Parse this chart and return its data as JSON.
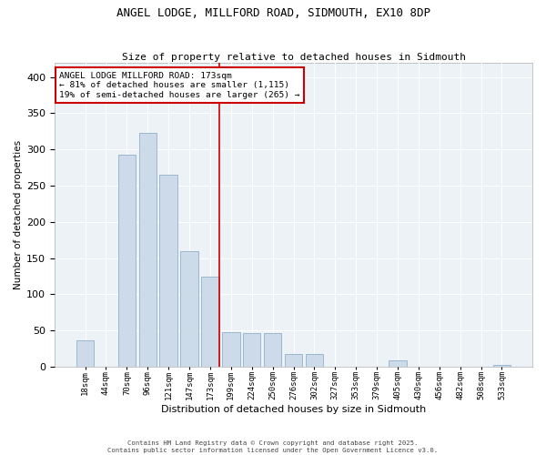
{
  "title_line1": "ANGEL LODGE, MILLFORD ROAD, SIDMOUTH, EX10 8DP",
  "title_line2": "Size of property relative to detached houses in Sidmouth",
  "xlabel": "Distribution of detached houses by size in Sidmouth",
  "ylabel": "Number of detached properties",
  "bar_color": "#ccdaea",
  "bar_edge_color": "#9bb8d0",
  "annotation_line_color": "#cc0000",
  "plot_bg_color": "#edf2f7",
  "bins": [
    "18sqm",
    "44sqm",
    "70sqm",
    "96sqm",
    "121sqm",
    "147sqm",
    "173sqm",
    "199sqm",
    "224sqm",
    "250sqm",
    "276sqm",
    "302sqm",
    "327sqm",
    "353sqm",
    "379sqm",
    "405sqm",
    "430sqm",
    "456sqm",
    "482sqm",
    "508sqm",
    "533sqm"
  ],
  "values": [
    37,
    0,
    293,
    323,
    265,
    160,
    125,
    48,
    47,
    47,
    18,
    18,
    0,
    0,
    0,
    9,
    0,
    0,
    0,
    0,
    3
  ],
  "property_bin_index": 6,
  "annotation_text_line1": "ANGEL LODGE MILLFORD ROAD: 173sqm",
  "annotation_text_line2": "← 81% of detached houses are smaller (1,115)",
  "annotation_text_line3": "19% of semi-detached houses are larger (265) →",
  "ylim": [
    0,
    420
  ],
  "yticks": [
    0,
    50,
    100,
    150,
    200,
    250,
    300,
    350,
    400
  ],
  "footer_line1": "Contains HM Land Registry data © Crown copyright and database right 2025.",
  "footer_line2": "Contains public sector information licensed under the Open Government Licence v3.0."
}
